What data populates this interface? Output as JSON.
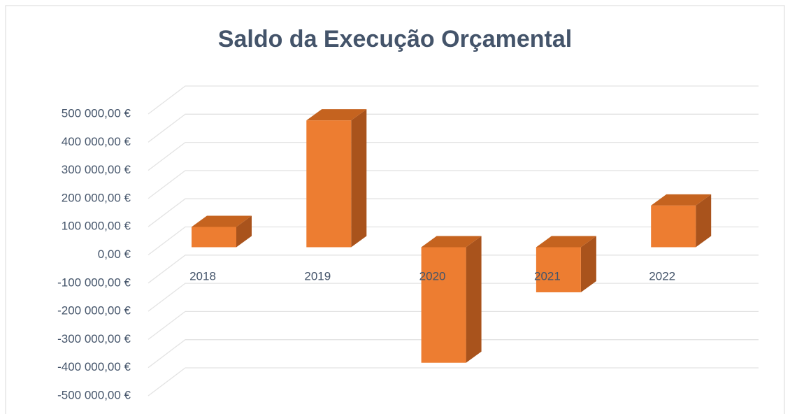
{
  "chart_data": {
    "type": "bar3d",
    "title": "Saldo da Execução Orçamental",
    "categories": [
      "2018",
      "2019",
      "2020",
      "2021",
      "2022"
    ],
    "values": [
      72000,
      450000,
      -410000,
      -160000,
      148000
    ],
    "color": "#ed7d31",
    "ylim": [
      -500000,
      500000
    ],
    "yticks": [
      {
        "value": -500000,
        "label": "-500 000,00 €"
      },
      {
        "value": -400000,
        "label": "-400 000,00 €"
      },
      {
        "value": -300000,
        "label": "-300 000,00 €"
      },
      {
        "value": -200000,
        "label": "-200 000,00 €"
      },
      {
        "value": -100000,
        "label": "-100 000,00 €"
      },
      {
        "value": 0,
        "label": "0,00 €"
      },
      {
        "value": 100000,
        "label": "100 000,00 €"
      },
      {
        "value": 200000,
        "label": "200 000,00 €"
      },
      {
        "value": 300000,
        "label": "300 000,00 €"
      },
      {
        "value": 400000,
        "label": "400 000,00 €"
      },
      {
        "value": 500000,
        "label": "500 000,00 €"
      }
    ],
    "grid": true
  }
}
